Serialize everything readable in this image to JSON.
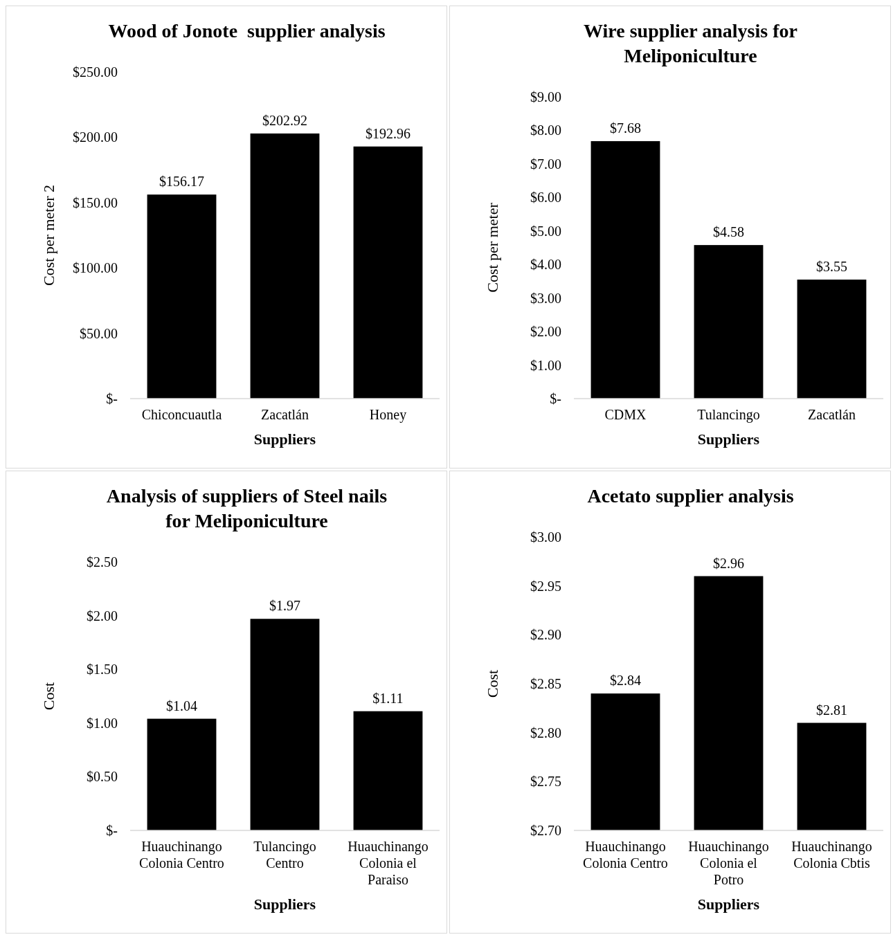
{
  "chart_data": [
    {
      "type": "bar",
      "title": "Wood of Jonote  supplier analysis",
      "xlabel": "Suppliers",
      "ylabel": "Cost per meter 2",
      "categories": [
        "Chiconcuautla",
        "Zacatlán",
        "Honey"
      ],
      "values": [
        156.17,
        202.92,
        192.96
      ],
      "value_labels": [
        "$156.17",
        "$202.92",
        "$192.96"
      ],
      "color": "#000000",
      "ylim": [
        0,
        250
      ],
      "yticks": [
        {
          "value": 0,
          "label": "$-"
        },
        {
          "value": 50,
          "label": "$50.00"
        },
        {
          "value": 100,
          "label": "$100.00"
        },
        {
          "value": 150,
          "label": "$150.00"
        },
        {
          "value": 200,
          "label": "$200.00"
        },
        {
          "value": 250,
          "label": "$250.00"
        }
      ],
      "grid": false
    },
    {
      "type": "bar",
      "title": "Wire supplier analysis for Meliponiculture",
      "xlabel": "Suppliers",
      "ylabel": "Cost per meter",
      "categories": [
        "CDMX",
        "Tulancingo",
        "Zacatlán"
      ],
      "values": [
        7.68,
        4.58,
        3.55
      ],
      "value_labels": [
        "$7.68",
        "$4.58",
        "$3.55"
      ],
      "color": "#000000",
      "ylim": [
        0,
        9
      ],
      "yticks": [
        {
          "value": 0,
          "label": "$-"
        },
        {
          "value": 1,
          "label": "$1.00"
        },
        {
          "value": 2,
          "label": "$2.00"
        },
        {
          "value": 3,
          "label": "$3.00"
        },
        {
          "value": 4,
          "label": "$4.00"
        },
        {
          "value": 5,
          "label": "$5.00"
        },
        {
          "value": 6,
          "label": "$6.00"
        },
        {
          "value": 7,
          "label": "$7.00"
        },
        {
          "value": 8,
          "label": "$8.00"
        },
        {
          "value": 9,
          "label": "$9.00"
        }
      ],
      "grid": false
    },
    {
      "type": "bar",
      "title": "Analysis of suppliers of Steel nails for Meliponiculture",
      "xlabel": "Suppliers",
      "ylabel": "Cost",
      "categories": [
        "Huauchinango Colonia Centro",
        "Tulancingo Centro",
        "Huauchinango Colonia el Paraiso"
      ],
      "values": [
        1.04,
        1.97,
        1.11
      ],
      "value_labels": [
        "$1.04",
        "$1.97",
        "$1.11"
      ],
      "color": "#000000",
      "ylim": [
        0,
        2.5
      ],
      "yticks": [
        {
          "value": 0,
          "label": "$-"
        },
        {
          "value": 0.5,
          "label": "$0.50"
        },
        {
          "value": 1,
          "label": "$1.00"
        },
        {
          "value": 1.5,
          "label": "$1.50"
        },
        {
          "value": 2,
          "label": "$2.00"
        },
        {
          "value": 2.5,
          "label": "$2.50"
        }
      ],
      "grid": false
    },
    {
      "type": "bar",
      "title": "Acetato supplier analysis",
      "xlabel": "Suppliers",
      "ylabel": "Cost",
      "categories": [
        "Huauchinango Colonia Centro",
        "Huauchinango Colonia el Potro",
        "Huauchinango Colonia Cbtis"
      ],
      "values": [
        2.84,
        2.96,
        2.81
      ],
      "value_labels": [
        "$2.84",
        "$2.96",
        "$2.81"
      ],
      "color": "#000000",
      "ylim": [
        2.7,
        3.0
      ],
      "yticks": [
        {
          "value": 2.7,
          "label": "$2.70"
        },
        {
          "value": 2.75,
          "label": "$2.75"
        },
        {
          "value": 2.8,
          "label": "$2.80"
        },
        {
          "value": 2.85,
          "label": "$2.85"
        },
        {
          "value": 2.9,
          "label": "$2.90"
        },
        {
          "value": 2.95,
          "label": "$2.95"
        },
        {
          "value": 3.0,
          "label": "$3.00"
        }
      ],
      "grid": false
    }
  ]
}
